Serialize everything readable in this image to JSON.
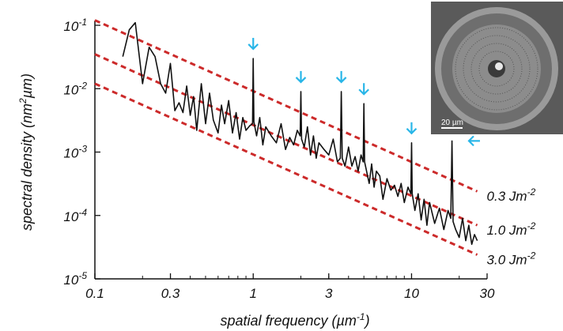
{
  "chart_data": {
    "type": "line",
    "title": "",
    "xlabel": "spatial frequency (µm",
    "xlabel_sup": "-1",
    "xlabel_close": ")",
    "ylabel": "spectral density (nm",
    "ylabel_sup": "2",
    "ylabel_close": "µm)",
    "x_scale": "log",
    "y_scale": "log",
    "xlim": [
      0.1,
      30
    ],
    "ylim": [
      1e-05,
      0.1
    ],
    "x_ticks": [
      {
        "value": 0.1,
        "label": "0.1"
      },
      {
        "value": 0.3,
        "label": "0.3"
      },
      {
        "value": 1,
        "label": "1"
      },
      {
        "value": 3,
        "label": "3"
      },
      {
        "value": 10,
        "label": "10"
      },
      {
        "value": 30,
        "label": "30"
      }
    ],
    "y_ticks": [
      {
        "value": 1e-05,
        "base": "10",
        "exp": "-5"
      },
      {
        "value": 0.0001,
        "base": "10",
        "exp": "-4"
      },
      {
        "value": 0.001,
        "base": "10",
        "exp": "-3"
      },
      {
        "value": 0.01,
        "base": "10",
        "exp": "-2"
      },
      {
        "value": 0.1,
        "base": "10",
        "exp": "-1"
      }
    ],
    "grid": false,
    "series": [
      {
        "role": "measured spectrum",
        "color": "#111111",
        "x": [
          0.15,
          0.165,
          0.18,
          0.2,
          0.22,
          0.24,
          0.26,
          0.28,
          0.3,
          0.32,
          0.34,
          0.36,
          0.38,
          0.4,
          0.42,
          0.44,
          0.47,
          0.5,
          0.53,
          0.56,
          0.6,
          0.63,
          0.66,
          0.7,
          0.74,
          0.78,
          0.82,
          0.86,
          0.9,
          0.95,
          0.99,
          1.0,
          1.01,
          1.05,
          1.1,
          1.15,
          1.2,
          1.3,
          1.4,
          1.5,
          1.6,
          1.7,
          1.8,
          1.9,
          1.98,
          2.0,
          2.02,
          2.1,
          2.2,
          2.3,
          2.4,
          2.5,
          2.6,
          2.8,
          3.0,
          3.2,
          3.4,
          3.55,
          3.6,
          3.65,
          3.8,
          4.0,
          4.2,
          4.4,
          4.6,
          4.8,
          4.95,
          5.0,
          5.05,
          5.2,
          5.4,
          5.6,
          5.8,
          6.0,
          6.3,
          6.6,
          7.0,
          7.4,
          7.8,
          8.2,
          8.6,
          9.0,
          9.5,
          9.9,
          10.0,
          10.1,
          10.5,
          11.0,
          11.5,
          12.0,
          12.5,
          13.0,
          14.0,
          15.0,
          16.0,
          17.0,
          17.7,
          18.0,
          18.3,
          19.0,
          20.0,
          21.0,
          22.0,
          23.0,
          24.0,
          25.0,
          26.0
        ],
        "y": [
          0.032,
          0.085,
          0.11,
          0.012,
          0.045,
          0.032,
          0.012,
          0.0085,
          0.025,
          0.0045,
          0.006,
          0.0042,
          0.011,
          0.0038,
          0.0075,
          0.0022,
          0.012,
          0.0028,
          0.0085,
          0.0032,
          0.002,
          0.0055,
          0.0028,
          0.0065,
          0.002,
          0.0042,
          0.0016,
          0.0035,
          0.0022,
          0.0026,
          0.0028,
          0.03,
          0.003,
          0.0018,
          0.0035,
          0.0013,
          0.0025,
          0.0018,
          0.0014,
          0.0028,
          0.0011,
          0.0017,
          0.0013,
          0.0022,
          0.0018,
          0.009,
          0.0016,
          0.0012,
          0.0025,
          0.0009,
          0.0018,
          0.0008,
          0.0014,
          0.0011,
          0.0009,
          0.0016,
          0.0007,
          0.0008,
          0.009,
          0.0008,
          0.0006,
          0.0012,
          0.0006,
          0.00085,
          0.0005,
          0.0009,
          0.0007,
          0.0058,
          0.0007,
          0.0005,
          0.00032,
          0.00065,
          0.00028,
          0.0005,
          0.00042,
          0.00018,
          0.00038,
          0.00025,
          0.0003,
          0.0002,
          0.00032,
          0.00016,
          0.00028,
          0.00022,
          0.0014,
          0.00022,
          0.00012,
          0.00022,
          8.5e-05,
          0.00018,
          7e-05,
          0.00016,
          7.5e-05,
          0.00013,
          6e-05,
          0.00012,
          9e-05,
          0.0015,
          8e-05,
          6e-05,
          4.5e-05,
          9e-05,
          4e-05,
          7e-05,
          3.5e-05,
          5e-05,
          4e-05
        ]
      },
      {
        "role": "reference line",
        "label": "0.3 Jm",
        "label_sup": "-2",
        "color": "#cc2a2a",
        "dashed": true,
        "x": [
          0.1,
          26
        ],
        "y": [
          0.12,
          0.00024
        ]
      },
      {
        "role": "reference line",
        "label": "1.0 Jm",
        "label_sup": "-2",
        "color": "#cc2a2a",
        "dashed": true,
        "x": [
          0.1,
          26
        ],
        "y": [
          0.035,
          7e-05
        ]
      },
      {
        "role": "reference line",
        "label": "3.0 Jm",
        "label_sup": "-2",
        "color": "#cc2a2a",
        "dashed": true,
        "x": [
          0.1,
          26
        ],
        "y": [
          0.012,
          2.4e-05
        ]
      }
    ],
    "peak_markers": {
      "color": "#29b6e8",
      "points": [
        {
          "x": 1.0,
          "y": 0.03,
          "direction": "down"
        },
        {
          "x": 2.0,
          "y": 0.009,
          "direction": "down"
        },
        {
          "x": 3.6,
          "y": 0.009,
          "direction": "down"
        },
        {
          "x": 5.0,
          "y": 0.0058,
          "direction": "down"
        },
        {
          "x": 10.0,
          "y": 0.0014,
          "direction": "down"
        },
        {
          "x": 21.0,
          "y": 0.0015,
          "direction": "left"
        }
      ]
    },
    "inset": {
      "description_for_render": "SEM micrograph of fiber cross-section",
      "scale_bar_label": "20 µm"
    }
  }
}
